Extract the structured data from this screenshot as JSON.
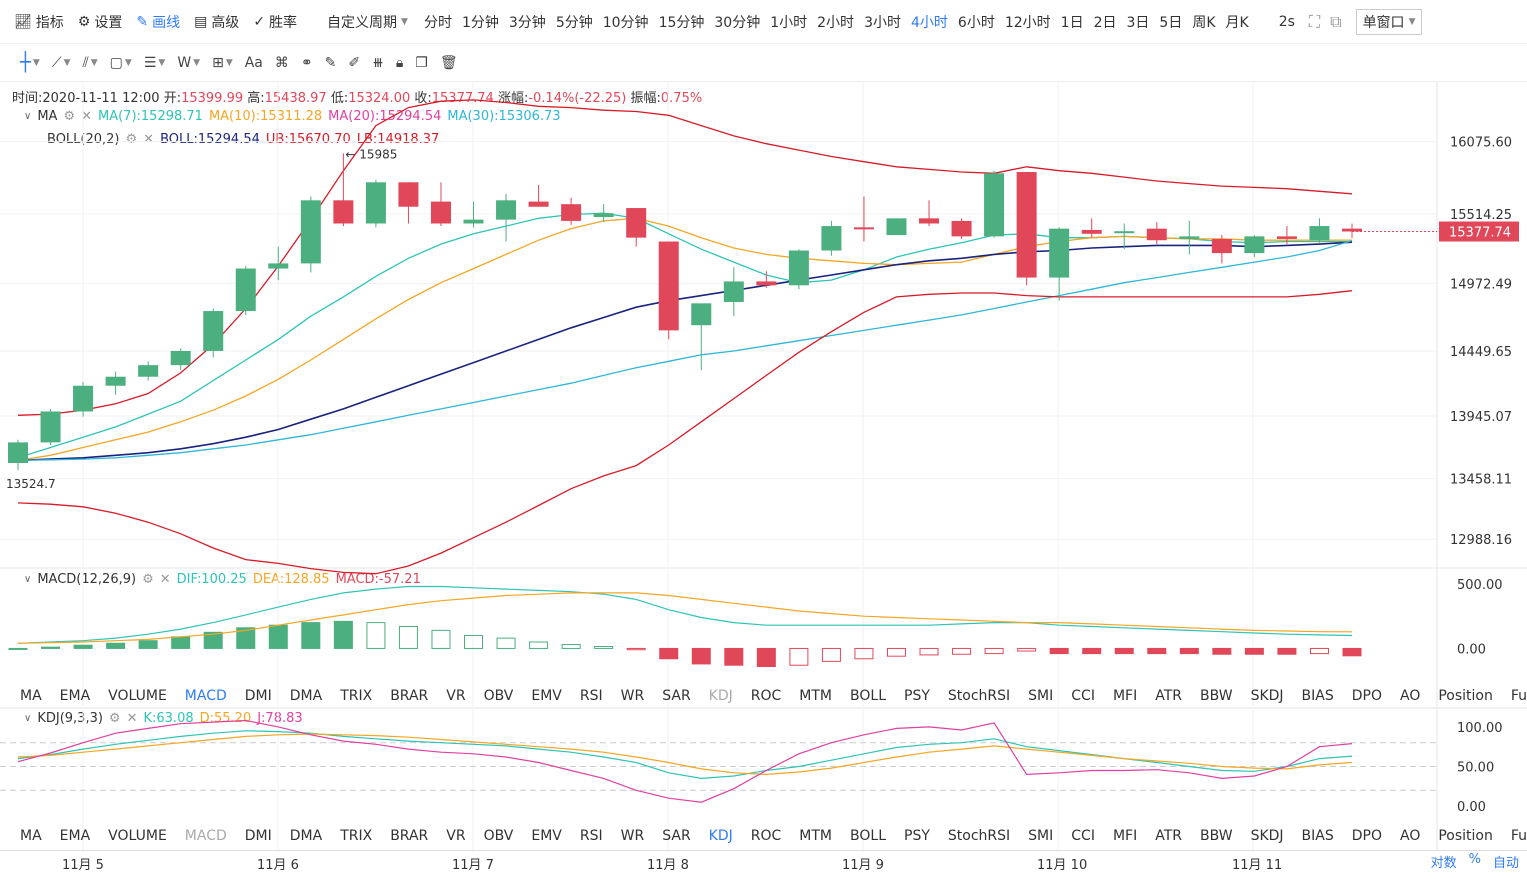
{
  "topbar": {
    "items": [
      {
        "label": "指标",
        "icon": "indicator-icon"
      },
      {
        "label": "设置",
        "icon": "gear-icon"
      },
      {
        "label": "画线",
        "icon": "pen-icon",
        "active": true
      },
      {
        "label": "高级",
        "icon": "calendar-icon"
      },
      {
        "label": "胜率",
        "icon": "check-circle-icon"
      }
    ],
    "custom_period": "自定义周期",
    "periods": [
      "分时",
      "1分钟",
      "3分钟",
      "5分钟",
      "10分钟",
      "15分钟",
      "30分钟",
      "1小时",
      "2小时",
      "3小时",
      "4小时",
      "6小时",
      "12小时",
      "1日",
      "2日",
      "3日",
      "5日",
      "周K",
      "月K"
    ],
    "active_period": "4小时",
    "refresh": "2s",
    "window_mode": "单窗口"
  },
  "info": {
    "time_label": "时间:",
    "time": "2020-11-11 12:00",
    "open_label": "开:",
    "open": "15399.99",
    "high_label": "高:",
    "high": "15438.97",
    "low_label": "低:",
    "low": "15324.00",
    "close_label": "收:",
    "close": "15377.74",
    "change_label": "涨幅:",
    "change": "-0.14%(-22.25)",
    "amp_label": "振幅:",
    "amp": "0.75%"
  },
  "ma_legend": {
    "name": "MA",
    "ma7": "MA(7):15298.71",
    "ma10": "MA(10):15311.28",
    "ma20": "MA(20):15294.54",
    "ma30": "MA(30):15306.73"
  },
  "boll_legend": {
    "name": "BOLL(20,2)",
    "boll": "BOLL:15294.54",
    "ub": "UB:15670.70",
    "lb": "LB:14918.37"
  },
  "macd_legend": {
    "name": "MACD(12,26,9)",
    "dif": "DIF:100.25",
    "dea": "DEA:128.85",
    "macd": "MACD:-57.21"
  },
  "kdj_legend": {
    "name": "KDJ(9,3,3)",
    "k": "K:63.08",
    "d": "D:55.20",
    "j": "J:78.83"
  },
  "indicator_tabs": [
    "MA",
    "EMA",
    "VOLUME",
    "MACD",
    "DMI",
    "DMA",
    "TRIX",
    "BRAR",
    "VR",
    "OBV",
    "EMV",
    "RSI",
    "WR",
    "SAR",
    "KDJ",
    "ROC",
    "MTM",
    "BOLL",
    "PSY",
    "StochRSI",
    "SMI",
    "CCI",
    "MFI",
    "ATR",
    "BBW",
    "SKDJ",
    "BIAS",
    "DPO",
    "AO",
    "Position",
    "Fundflow"
  ],
  "x_ticks": [
    "11月 5",
    "11月 6",
    "11月 7",
    "11月 8",
    "11月 9",
    "11月 10",
    "11月 11"
  ],
  "bottom_right": [
    "对数",
    "%",
    "自动"
  ],
  "colors": {
    "up": "#4caf7f",
    "down": "#e0485a",
    "ma7": "#2ec4b6",
    "ma10": "#f5a623",
    "ma20": "#e040a0",
    "ma30": "#2fb7d8",
    "boll": "#1a237e",
    "band": "#d81b28",
    "accent": "#2f7cf6"
  },
  "chart_data": [
    {
      "type": "candlestick",
      "title": "",
      "y_ticks": [
        16075.6,
        15514.25,
        14972.49,
        14449.65,
        13945.07,
        13458.11,
        12988.16
      ],
      "ylim": [
        12780,
        16500
      ],
      "last_price": "15377.74",
      "annotations": {
        "high_mark": "15985",
        "low_mark": "13524.7"
      },
      "candles": [
        {
          "o": 13580,
          "h": 13760,
          "l": 13524.7,
          "c": 13740
        },
        {
          "o": 13740,
          "h": 14000,
          "l": 13720,
          "c": 13980
        },
        {
          "o": 13980,
          "h": 14210,
          "l": 13940,
          "c": 14180
        },
        {
          "o": 14180,
          "h": 14290,
          "l": 14110,
          "c": 14250
        },
        {
          "o": 14250,
          "h": 14370,
          "l": 14220,
          "c": 14340
        },
        {
          "o": 14340,
          "h": 14470,
          "l": 14300,
          "c": 14450
        },
        {
          "o": 14450,
          "h": 14780,
          "l": 14400,
          "c": 14760
        },
        {
          "o": 14760,
          "h": 15110,
          "l": 14730,
          "c": 15090
        },
        {
          "o": 15090,
          "h": 15260,
          "l": 15000,
          "c": 15130
        },
        {
          "o": 15130,
          "h": 15650,
          "l": 15060,
          "c": 15620
        },
        {
          "o": 15620,
          "h": 15985,
          "l": 15420,
          "c": 15440
        },
        {
          "o": 15440,
          "h": 15780,
          "l": 15410,
          "c": 15760
        },
        {
          "o": 15760,
          "h": 15760,
          "l": 15440,
          "c": 15570
        },
        {
          "o": 15610,
          "h": 15760,
          "l": 15420,
          "c": 15440
        },
        {
          "o": 15440,
          "h": 15610,
          "l": 15410,
          "c": 15470
        },
        {
          "o": 15470,
          "h": 15670,
          "l": 15300,
          "c": 15620
        },
        {
          "o": 15610,
          "h": 15740,
          "l": 15580,
          "c": 15570
        },
        {
          "o": 15590,
          "h": 15640,
          "l": 15430,
          "c": 15460
        },
        {
          "o": 15490,
          "h": 15590,
          "l": 15450,
          "c": 15520
        },
        {
          "o": 15560,
          "h": 15560,
          "l": 15260,
          "c": 15330
        },
        {
          "o": 15300,
          "h": 15300,
          "l": 14540,
          "c": 14610
        },
        {
          "o": 14650,
          "h": 14810,
          "l": 14300,
          "c": 14820
        },
        {
          "o": 14830,
          "h": 15100,
          "l": 14720,
          "c": 14990
        },
        {
          "o": 14990,
          "h": 15070,
          "l": 14940,
          "c": 14960
        },
        {
          "o": 14960,
          "h": 15240,
          "l": 14930,
          "c": 15230
        },
        {
          "o": 15230,
          "h": 15460,
          "l": 15190,
          "c": 15420
        },
        {
          "o": 15410,
          "h": 15650,
          "l": 15300,
          "c": 15400
        },
        {
          "o": 15350,
          "h": 15480,
          "l": 15360,
          "c": 15480
        },
        {
          "o": 15480,
          "h": 15620,
          "l": 15420,
          "c": 15440
        },
        {
          "o": 15460,
          "h": 15480,
          "l": 15320,
          "c": 15340
        },
        {
          "o": 15340,
          "h": 15850,
          "l": 15330,
          "c": 15830
        },
        {
          "o": 15840,
          "h": 15840,
          "l": 14960,
          "c": 15020
        },
        {
          "o": 15020,
          "h": 15410,
          "l": 14840,
          "c": 15400
        },
        {
          "o": 15390,
          "h": 15480,
          "l": 15330,
          "c": 15360
        },
        {
          "o": 15370,
          "h": 15440,
          "l": 15240,
          "c": 15380
        },
        {
          "o": 15400,
          "h": 15450,
          "l": 15280,
          "c": 15310
        },
        {
          "o": 15320,
          "h": 15460,
          "l": 15200,
          "c": 15340
        },
        {
          "o": 15320,
          "h": 15350,
          "l": 15130,
          "c": 15210
        },
        {
          "o": 15210,
          "h": 15350,
          "l": 15180,
          "c": 15340
        },
        {
          "o": 15340,
          "h": 15420,
          "l": 15280,
          "c": 15320
        },
        {
          "o": 15310,
          "h": 15480,
          "l": 15290,
          "c": 15420
        },
        {
          "o": 15400,
          "h": 15439,
          "l": 15324,
          "c": 15377.74
        }
      ],
      "series": [
        {
          "name": "MA(7)",
          "values": [
            13620,
            13700,
            13780,
            13860,
            13960,
            14060,
            14220,
            14380,
            14540,
            14720,
            14870,
            15030,
            15170,
            15280,
            15360,
            15420,
            15480,
            15510,
            15520,
            15480,
            15360,
            15240,
            15140,
            15040,
            14980,
            15000,
            15080,
            15180,
            15240,
            15290,
            15350,
            15360,
            15330,
            15330,
            15340,
            15330,
            15320,
            15300,
            15290,
            15300,
            15300,
            15298.71
          ]
        },
        {
          "name": "MA(10)",
          "values": [
            13600,
            13640,
            13700,
            13760,
            13820,
            13900,
            13990,
            14100,
            14230,
            14380,
            14540,
            14700,
            14850,
            14980,
            15090,
            15200,
            15310,
            15400,
            15460,
            15480,
            15420,
            15330,
            15250,
            15200,
            15170,
            15150,
            15130,
            15120,
            15130,
            15140,
            15200,
            15260,
            15300,
            15330,
            15340,
            15330,
            15320,
            15320,
            15310,
            15310,
            15310,
            15311.28
          ]
        },
        {
          "name": "MA(20)",
          "values": [
            13600,
            13610,
            13620,
            13640,
            13660,
            13690,
            13730,
            13780,
            13840,
            13920,
            14000,
            14090,
            14180,
            14270,
            14360,
            14450,
            14540,
            14630,
            14710,
            14790,
            14840,
            14880,
            14920,
            14960,
            15000,
            15040,
            15080,
            15120,
            15150,
            15170,
            15200,
            15220,
            15230,
            15250,
            15260,
            15270,
            15270,
            15270,
            15260,
            15270,
            15280,
            15294.54
          ]
        },
        {
          "name": "MA(30)",
          "values": [
            13600,
            13605,
            13610,
            13620,
            13640,
            13660,
            13690,
            13720,
            13760,
            13800,
            13850,
            13900,
            13950,
            14000,
            14050,
            14100,
            14150,
            14200,
            14260,
            14320,
            14370,
            14420,
            14450,
            14490,
            14530,
            14570,
            14610,
            14650,
            14690,
            14730,
            14780,
            14830,
            14880,
            14930,
            14980,
            15020,
            15060,
            15100,
            15140,
            15180,
            15230,
            15306.73
          ]
        },
        {
          "name": "UB",
          "values": [
            13950,
            13960,
            13990,
            14040,
            14120,
            14280,
            14500,
            14780,
            15110,
            15470,
            15850,
            16200,
            16340,
            16390,
            16400,
            16380,
            16350,
            16340,
            16320,
            16310,
            16280,
            16200,
            16120,
            16060,
            16010,
            15960,
            15920,
            15880,
            15860,
            15840,
            15830,
            15880,
            15850,
            15830,
            15800,
            15770,
            15750,
            15730,
            15720,
            15710,
            15690,
            15670.7
          ]
        },
        {
          "name": "LB",
          "values": [
            13270,
            13260,
            13240,
            13190,
            13120,
            13030,
            12920,
            12830,
            12800,
            12760,
            12730,
            12720,
            12780,
            12880,
            13000,
            13120,
            13250,
            13380,
            13480,
            13560,
            13720,
            13900,
            14080,
            14260,
            14440,
            14600,
            14750,
            14870,
            14890,
            14900,
            14900,
            14880,
            14870,
            14870,
            14870,
            14870,
            14870,
            14870,
            14870,
            14870,
            14890,
            14918.37
          ]
        }
      ]
    },
    {
      "type": "bar",
      "title": "MACD(12,26,9)",
      "y_ticks": [
        500.0,
        0.0
      ],
      "ylim": [
        -260,
        600
      ],
      "series": [
        {
          "name": "DIF",
          "values": [
            40,
            50,
            60,
            80,
            110,
            150,
            200,
            260,
            320,
            380,
            430,
            460,
            480,
            480,
            470,
            460,
            450,
            440,
            420,
            380,
            300,
            240,
            200,
            180,
            180,
            180,
            180,
            180,
            180,
            190,
            200,
            200,
            180,
            170,
            160,
            150,
            140,
            130,
            120,
            110,
            105,
            100.25
          ]
        },
        {
          "name": "DEA",
          "values": [
            40,
            45,
            50,
            60,
            70,
            90,
            110,
            140,
            180,
            220,
            260,
            300,
            340,
            370,
            390,
            410,
            420,
            430,
            430,
            430,
            410,
            380,
            350,
            320,
            290,
            270,
            250,
            240,
            230,
            220,
            210,
            200,
            200,
            190,
            180,
            170,
            160,
            150,
            140,
            135,
            130,
            128.85
          ]
        },
        {
          "name": "MACD",
          "values": [
            0,
            10,
            25,
            40,
            60,
            90,
            125,
            160,
            180,
            200,
            210,
            200,
            170,
            140,
            100,
            80,
            50,
            30,
            15,
            -10,
            -80,
            -120,
            -130,
            -140,
            -130,
            -100,
            -80,
            -60,
            -50,
            -45,
            -40,
            -20,
            -40,
            -40,
            -40,
            -40,
            -40,
            -45,
            -45,
            -45,
            -40,
            -57.21
          ]
        }
      ]
    },
    {
      "type": "line",
      "title": "KDJ(9,3,3)",
      "y_ticks": [
        100.0,
        50.0,
        0.0
      ],
      "ylim": [
        -20,
        120
      ],
      "series": [
        {
          "name": "K",
          "values": [
            60,
            65,
            72,
            78,
            83,
            88,
            92,
            95,
            94,
            92,
            88,
            85,
            82,
            80,
            78,
            76,
            72,
            68,
            62,
            55,
            42,
            35,
            38,
            45,
            50,
            58,
            66,
            74,
            78,
            80,
            85,
            75,
            70,
            65,
            60,
            55,
            50,
            45,
            44,
            50,
            60,
            63.08
          ]
        },
        {
          "name": "D",
          "values": [
            62,
            64,
            68,
            72,
            76,
            80,
            84,
            88,
            90,
            91,
            90,
            89,
            87,
            84,
            81,
            78,
            75,
            72,
            68,
            62,
            55,
            47,
            42,
            40,
            43,
            48,
            55,
            62,
            68,
            72,
            76,
            72,
            68,
            64,
            60,
            57,
            54,
            50,
            48,
            47,
            52,
            55.2
          ]
        },
        {
          "name": "J",
          "values": [
            56,
            67,
            80,
            92,
            98,
            104,
            106,
            108,
            100,
            90,
            82,
            78,
            72,
            68,
            66,
            62,
            55,
            45,
            35,
            20,
            10,
            5,
            22,
            45,
            66,
            80,
            90,
            98,
            100,
            96,
            105,
            40,
            42,
            45,
            45,
            46,
            42,
            35,
            38,
            50,
            75,
            78.83
          ]
        }
      ]
    }
  ]
}
